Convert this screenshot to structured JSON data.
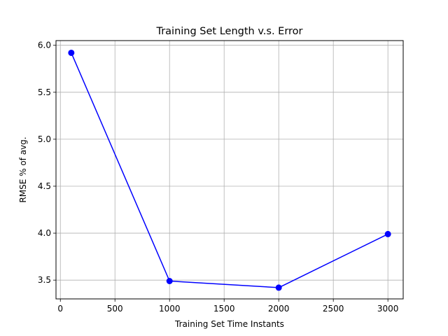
{
  "chart_data": {
    "type": "line",
    "title": "Training Set Length v.s. Error",
    "xlabel": "Training Set Time Instants",
    "ylabel": "RMSE % of avg.",
    "xlim": [
      -40,
      3140
    ],
    "ylim": [
      3.3,
      6.05
    ],
    "xticks": [
      0,
      500,
      1000,
      1500,
      2000,
      2500,
      3000
    ],
    "yticks": [
      3.5,
      4.0,
      4.5,
      5.0,
      5.5,
      6.0
    ],
    "xtick_labels": [
      "0",
      "500",
      "1000",
      "1500",
      "2000",
      "2500",
      "3000"
    ],
    "ytick_labels": [
      "3.5",
      "4.0",
      "4.5",
      "5.0",
      "5.5",
      "6.0"
    ],
    "grid": true,
    "series": [
      {
        "x": [
          100,
          1000,
          2000,
          3000
        ],
        "y": [
          5.92,
          3.49,
          3.42,
          3.99
        ],
        "color": "#0000ff",
        "marker": "circle"
      }
    ]
  }
}
